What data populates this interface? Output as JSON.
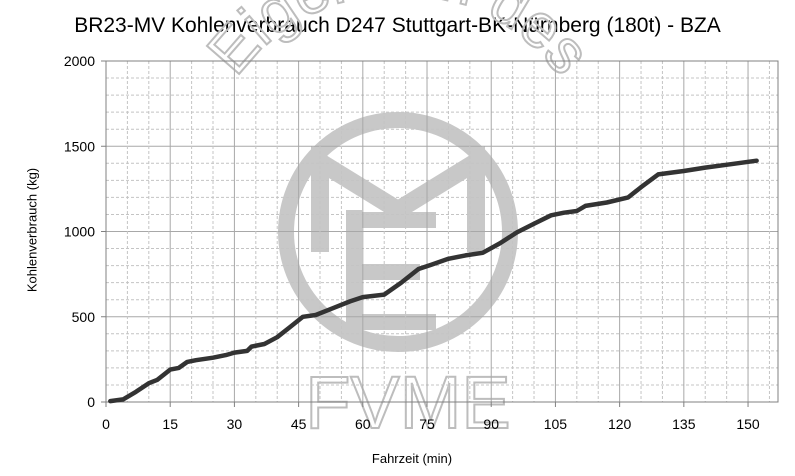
{
  "chart_data": {
    "type": "line",
    "title": "BR23-MV Kohlenverbrauch D247 Stuttgart-BK-Nürnberg (180t) - BZA",
    "xlabel": "Fahrzeit (min)",
    "ylabel": "Kohlenverbrauch (kg)",
    "xlim": [
      0,
      157
    ],
    "ylim": [
      0,
      2000
    ],
    "xticks": [
      0,
      15,
      30,
      45,
      60,
      75,
      90,
      105,
      120,
      135,
      150
    ],
    "yticks": [
      0,
      500,
      1000,
      1500,
      2000
    ],
    "grid": true,
    "legend": "none",
    "series": [
      {
        "color": "#333333",
        "points": [
          [
            1,
            5
          ],
          [
            4,
            15
          ],
          [
            7,
            60
          ],
          [
            10,
            110
          ],
          [
            12,
            130
          ],
          [
            15,
            190
          ],
          [
            17,
            200
          ],
          [
            19,
            235
          ],
          [
            21,
            245
          ],
          [
            25,
            260
          ],
          [
            28,
            275
          ],
          [
            30,
            290
          ],
          [
            33,
            300
          ],
          [
            34,
            325
          ],
          [
            37,
            340
          ],
          [
            40,
            380
          ],
          [
            43,
            440
          ],
          [
            46,
            500
          ],
          [
            49,
            510
          ],
          [
            53,
            550
          ],
          [
            57,
            590
          ],
          [
            60,
            615
          ],
          [
            65,
            630
          ],
          [
            69,
            700
          ],
          [
            73,
            780
          ],
          [
            76,
            805
          ],
          [
            80,
            840
          ],
          [
            84,
            860
          ],
          [
            88,
            875
          ],
          [
            92,
            930
          ],
          [
            96,
            995
          ],
          [
            100,
            1045
          ],
          [
            104,
            1095
          ],
          [
            107,
            1110
          ],
          [
            110,
            1120
          ],
          [
            112,
            1150
          ],
          [
            117,
            1170
          ],
          [
            122,
            1200
          ],
          [
            125,
            1260
          ],
          [
            129,
            1335
          ],
          [
            135,
            1355
          ],
          [
            140,
            1375
          ],
          [
            146,
            1395
          ],
          [
            152,
            1415
          ]
        ]
      }
    ]
  },
  "watermark": {
    "arc_text": "Eigentum des",
    "bottom_text": "FVME",
    "color": "#bdbdbd"
  }
}
